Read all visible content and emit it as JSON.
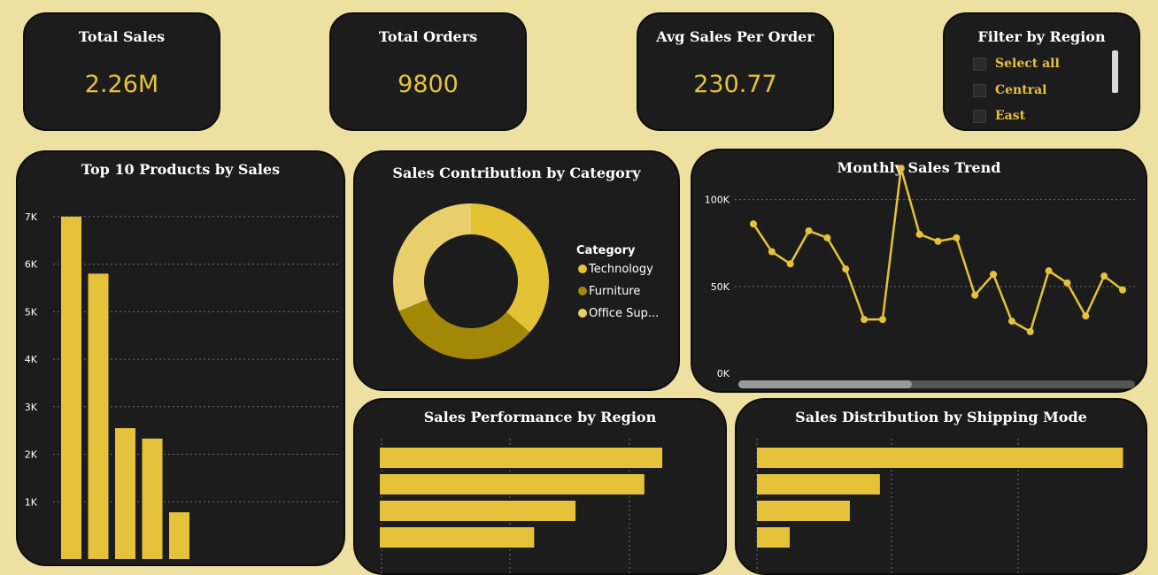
{
  "kpis": {
    "total_sales": {
      "title": "Total Sales",
      "value": "2.26M"
    },
    "total_orders": {
      "title": "Total Orders",
      "value": "9800"
    },
    "avg_sales": {
      "title": "Avg Sales Per Order",
      "value": "230.77"
    }
  },
  "filter": {
    "title": "Filter by Region",
    "options": [
      "Select all",
      "Central",
      "East"
    ]
  },
  "colors": {
    "accent": "#e6c23a",
    "dark_accent": "#a38808",
    "light_accent": "#e8cf6b",
    "panel": "#1c1c1c",
    "background": "#ede0a0"
  },
  "chart_data": [
    {
      "id": "top_products",
      "type": "bar",
      "title": "Top 10 Products by Sales",
      "orientation": "vertical",
      "y_ticks": [
        "7K",
        "6K",
        "5K",
        "4K",
        "3K",
        "2K",
        "1K"
      ],
      "ylim": [
        0,
        7500
      ],
      "values": [
        7000,
        5800,
        2550,
        2330,
        780
      ]
    },
    {
      "id": "category_donut",
      "type": "pie",
      "title": "Sales Contribution by Category",
      "legend_title": "Category",
      "labels": [
        "Technology",
        "Furniture",
        "Office Sup..."
      ],
      "values": [
        36.4,
        32.3,
        31.3
      ],
      "colors": [
        "#e3c234",
        "#a38808",
        "#e8cf6b"
      ]
    },
    {
      "id": "monthly_trend",
      "type": "line",
      "title": "Monthly Sales Trend",
      "y_ticks": [
        "100K",
        "50K",
        "0K"
      ],
      "ylim": [
        0,
        110000
      ],
      "values": [
        86000,
        70000,
        63000,
        82000,
        78000,
        60000,
        31000,
        31000,
        118000,
        80000,
        76000,
        78000,
        45000,
        57000,
        30000,
        24000,
        59000,
        52000,
        33000,
        56000,
        48000
      ]
    },
    {
      "id": "region_performance",
      "type": "bar",
      "title": "Sales Performance by Region",
      "orientation": "horizontal",
      "xlim": [
        0,
        750000
      ],
      "values": [
        710000,
        665000,
        492000,
        388000
      ]
    },
    {
      "id": "shipping_mode",
      "type": "bar",
      "title": "Sales Distribution by Shipping Mode",
      "orientation": "horizontal",
      "xlim": [
        0,
        1400000
      ],
      "values": [
        1340000,
        450000,
        340000,
        120000
      ]
    }
  ]
}
